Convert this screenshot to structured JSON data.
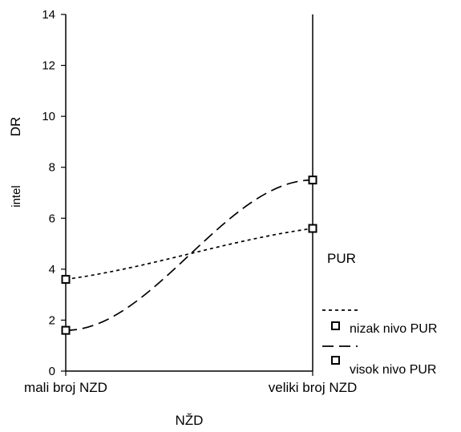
{
  "chart_data": {
    "type": "line",
    "categories": [
      "mali broj NZD",
      "veliki broj NZD"
    ],
    "series": [
      {
        "name": "nizak nivo PUR",
        "values": [
          3.6,
          5.6
        ],
        "line_style": "dotted",
        "marker": "square"
      },
      {
        "name": "visok nivo PUR",
        "values": [
          1.6,
          7.5
        ],
        "line_style": "dashed",
        "marker": "square"
      }
    ],
    "ylim": [
      0,
      14
    ],
    "yticks": [
      0,
      2,
      4,
      6,
      8,
      10,
      12,
      14
    ],
    "ylabel": "DR",
    "ylabel_overlap_text": "intel",
    "xlabel": "NŽD",
    "legend_title": "PUR",
    "legend_position": "right",
    "grid": false,
    "colors": {
      "line": "#000000",
      "marker": "#000000",
      "background": "#ffffff"
    }
  }
}
